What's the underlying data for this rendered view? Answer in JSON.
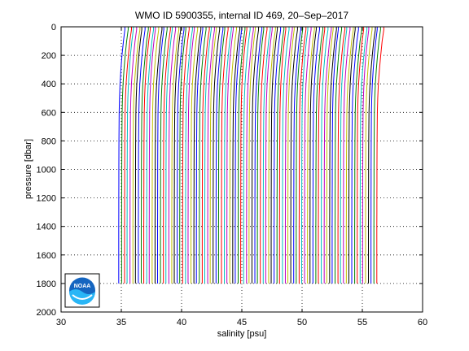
{
  "figure": {
    "title": "WMO ID 5900355, internal ID 469, 20–Sep–2017",
    "logo_text": "NOAA"
  },
  "chart_data": {
    "type": "line",
    "title": "WMO ID 5900355, internal ID 469, 20–Sep–2017",
    "xlabel": "salinity [psu]",
    "ylabel": "pressure [dbar]",
    "xlim": [
      30,
      60
    ],
    "ylim": [
      0,
      2000
    ],
    "y_reversed": true,
    "x_ticks": [
      30,
      35,
      40,
      45,
      50,
      55,
      60
    ],
    "y_ticks": [
      0,
      200,
      400,
      600,
      800,
      1000,
      1200,
      1400,
      1600,
      1800,
      2000
    ],
    "grid": "dotted",
    "series_colors": [
      "#0000ff",
      "#008000",
      "#ff0000",
      "#00bfbf",
      "#bf00bf",
      "#bfbf00",
      "#000000"
    ],
    "profile_count": 94,
    "profile_offset_psu": 0.23,
    "first_profile_deep_salinity": 34.8,
    "surface_salinity_delta": 0.55,
    "profile_pressure": [
      0,
      20,
      50,
      100,
      200,
      300,
      400,
      500,
      600,
      700,
      800,
      900,
      1000,
      1100,
      1200,
      1300,
      1400,
      1500,
      1600,
      1700,
      1800
    ],
    "profile_shape_delta": [
      0.55,
      0.55,
      0.5,
      0.42,
      0.3,
      0.2,
      0.12,
      0.07,
      0.04,
      0.03,
      0.02,
      0.015,
      0.01,
      0.01,
      0.005,
      0.005,
      0.0,
      0.0,
      0.0,
      0.0,
      0.0
    ]
  }
}
